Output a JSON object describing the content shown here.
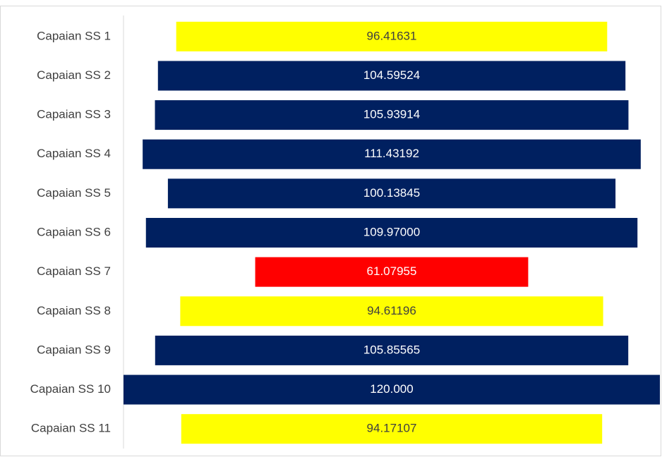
{
  "chart_data": {
    "type": "funnel",
    "categories": [
      "Capaian SS 1",
      "Capaian SS 2",
      "Capaian SS 3",
      "Capaian SS 4",
      "Capaian SS 5",
      "Capaian SS 6",
      "Capaian SS 7",
      "Capaian SS 8",
      "Capaian SS 9",
      "Capaian SS 10",
      "Capaian SS 11"
    ],
    "values": [
      96.41631,
      104.59524,
      105.93914,
      111.43192,
      100.13845,
      109.97,
      61.07955,
      94.61196,
      105.85565,
      120,
      94.17107
    ],
    "value_labels": [
      "96.41631",
      "104.59524",
      "105.93914",
      "111.43192",
      "100.13845",
      "109.97000",
      "61.07955",
      "94.61196",
      "105.85565",
      "120.000",
      "94.17107"
    ],
    "colors": [
      "#ffff00",
      "#002060",
      "#002060",
      "#002060",
      "#002060",
      "#002060",
      "#ff0000",
      "#ffff00",
      "#002060",
      "#002060",
      "#ffff00"
    ]
  }
}
